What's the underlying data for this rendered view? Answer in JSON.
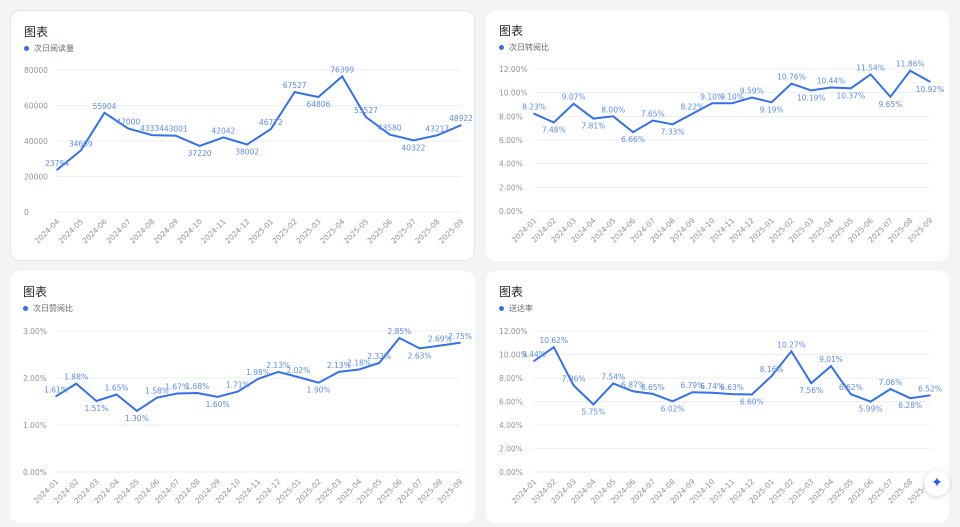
{
  "colors": {
    "line": "#3370eb",
    "label": "#5b8def",
    "grid": "#eceef1",
    "axis_text": "#8f959e"
  },
  "fab": {
    "icon": "sparkle-icon",
    "glyph": "✦"
  },
  "chart_data": [
    {
      "type": "line",
      "title": "图表",
      "legend": "次日阅读量",
      "legend_position": "top-left",
      "format": "int",
      "ylim": [
        0,
        80000
      ],
      "yticks": [
        0,
        20000,
        40000,
        60000,
        80000
      ],
      "ytick_labels": [
        "0",
        "20000",
        "40000",
        "60000",
        "80000"
      ],
      "categories": [
        "2024-04",
        "2024-05",
        "2024-06",
        "2024-07",
        "2024-08",
        "2024-09",
        "2024-10",
        "2024-11",
        "2024-12",
        "2025-01",
        "2025-02",
        "2025-03",
        "2025-04",
        "2025-05",
        "2025-06",
        "2025-07",
        "2025-08",
        "2025-09"
      ],
      "values": [
        23794,
        34669,
        55904,
        47000,
        43334,
        43001,
        37220,
        42042,
        38002,
        46772,
        67527,
        64806,
        76399,
        53527,
        43580,
        40322,
        43217,
        48922
      ],
      "labels": [
        "23794",
        "34669",
        "55904",
        "47000",
        "43334",
        "43001",
        "37220",
        "42042",
        "38002",
        "46772",
        "67527",
        "64806",
        "76399",
        "53527",
        "43580",
        "40322",
        "43217",
        "48922"
      ],
      "grid": true
    },
    {
      "type": "line",
      "title": "图表",
      "legend": "次日转阅比",
      "legend_position": "top-left",
      "format": "pct",
      "ylim": [
        0,
        12
      ],
      "yticks": [
        0,
        2,
        4,
        6,
        8,
        10,
        12
      ],
      "ytick_labels": [
        "0.00%",
        "2.00%",
        "4.00%",
        "6.00%",
        "8.00%",
        "10.00%",
        "12.00%"
      ],
      "categories": [
        "2024-01",
        "2024-02",
        "2024-03",
        "2024-04",
        "2024-05",
        "2024-06",
        "2024-07",
        "2024-08",
        "2024-09",
        "2024-10",
        "2024-11",
        "2024-12",
        "2025-01",
        "2025-02",
        "2025-03",
        "2025-04",
        "2025-05",
        "2025-06",
        "2025-07",
        "2025-08",
        "2025-09"
      ],
      "values": [
        8.23,
        7.48,
        9.07,
        7.81,
        8.0,
        6.66,
        7.65,
        7.33,
        8.22,
        9.1,
        9.1,
        9.59,
        9.19,
        10.76,
        10.19,
        10.44,
        10.37,
        11.54,
        9.65,
        11.86,
        10.92
      ],
      "labels": [
        "8.23%",
        "7.48%",
        "9.07%",
        "7.81%",
        "8.00%",
        "6.66%",
        "7.65%",
        "7.33%",
        "8.22%",
        "9.10%",
        "9.10%",
        "9.59%",
        "9.19%",
        "10.76%",
        "10.19%",
        "10.44%",
        "10.37%",
        "11.54%",
        "9.65%",
        "11.86%",
        "10.92%"
      ],
      "grid": true
    },
    {
      "type": "line",
      "title": "图表",
      "legend": "次日赞阅比",
      "legend_position": "top-left",
      "format": "pct",
      "ylim": [
        0,
        3
      ],
      "yticks": [
        0,
        1,
        2,
        3
      ],
      "ytick_labels": [
        "0.00%",
        "1.00%",
        "2.00%",
        "3.00%"
      ],
      "categories": [
        "2024-01",
        "2024-02",
        "2024-03",
        "2024-04",
        "2024-05",
        "2024-06",
        "2024-07",
        "2024-08",
        "2024-09",
        "2024-10",
        "2024-11",
        "2024-12",
        "2025-01",
        "2025-02",
        "2025-03",
        "2025-04",
        "2025-05",
        "2025-06",
        "2025-07",
        "2025-08",
        "2025-09"
      ],
      "values": [
        1.61,
        1.88,
        1.51,
        1.65,
        1.3,
        1.58,
        1.67,
        1.68,
        1.6,
        1.71,
        1.98,
        2.13,
        2.02,
        1.9,
        2.13,
        2.18,
        2.32,
        2.85,
        2.63,
        2.69,
        2.75
      ],
      "labels": [
        "1.61%",
        "1.88%",
        "1.51%",
        "1.65%",
        "1.30%",
        "1.58%",
        "1.67%",
        "1.68%",
        "1.60%",
        "1.71%",
        "1.98%",
        "2.13%",
        "2.02%",
        "1.90%",
        "2.13%",
        "2.18%",
        "2.32%",
        "2.85%",
        "2.63%",
        "2.69%",
        "2.75%"
      ],
      "grid": true
    },
    {
      "type": "line",
      "title": "图表",
      "legend": "送达率",
      "legend_position": "top-left",
      "format": "pct",
      "ylim": [
        0,
        12
      ],
      "yticks": [
        0,
        2,
        4,
        6,
        8,
        10,
        12
      ],
      "ytick_labels": [
        "0.00%",
        "2.00%",
        "4.00%",
        "6.00%",
        "8.00%",
        "10.00%",
        "12.00%"
      ],
      "categories": [
        "2024-01",
        "2024-02",
        "2024-03",
        "2024-04",
        "2024-05",
        "2024-06",
        "2024-07",
        "2024-08",
        "2024-09",
        "2024-10",
        "2024-11",
        "2024-12",
        "2025-01",
        "2025-02",
        "2025-03",
        "2025-04",
        "2025-05",
        "2025-06",
        "2025-07",
        "2025-08",
        "2025-09"
      ],
      "values": [
        9.44,
        10.62,
        7.36,
        5.75,
        7.54,
        6.87,
        6.65,
        6.02,
        6.79,
        6.74,
        6.63,
        6.6,
        8.16,
        10.27,
        7.56,
        9.01,
        6.62,
        5.99,
        7.06,
        6.28,
        6.52
      ],
      "labels": [
        "9.44%",
        "10.62%",
        "7.36%",
        "5.75%",
        "7.54%",
        "6.87%",
        "6.65%",
        "6.02%",
        "6.79%",
        "6.74%",
        "6.63%",
        "6.60%",
        "8.16%",
        "10.27%",
        "7.56%",
        "9.01%",
        "6.62%",
        "5.99%",
        "7.06%",
        "6.28%",
        "6.52%"
      ],
      "grid": true
    }
  ]
}
